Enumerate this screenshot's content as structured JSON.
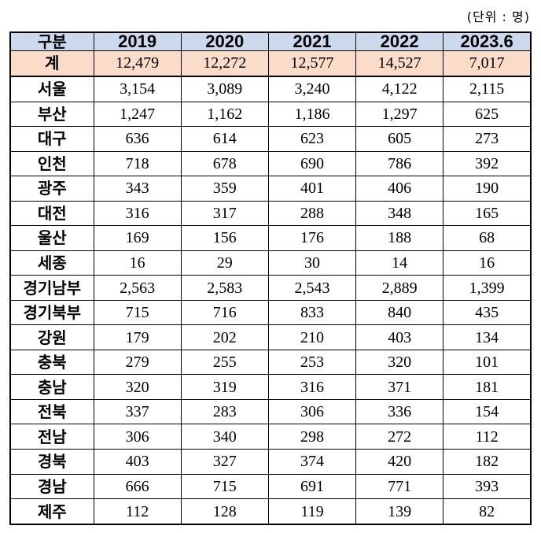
{
  "unit_label": "(단위 : 명)",
  "table": {
    "header": [
      "구분",
      "2019",
      "2020",
      "2021",
      "2022",
      "2023.6"
    ],
    "rows": [
      {
        "label": "계",
        "values": [
          "12,479",
          "12,272",
          "12,577",
          "14,527",
          "7,017"
        ]
      },
      {
        "label": "서울",
        "values": [
          "3,154",
          "3,089",
          "3,240",
          "4,122",
          "2,115"
        ]
      },
      {
        "label": "부산",
        "values": [
          "1,247",
          "1,162",
          "1,186",
          "1,297",
          "625"
        ]
      },
      {
        "label": "대구",
        "values": [
          "636",
          "614",
          "623",
          "605",
          "273"
        ]
      },
      {
        "label": "인천",
        "values": [
          "718",
          "678",
          "690",
          "786",
          "392"
        ]
      },
      {
        "label": "광주",
        "values": [
          "343",
          "359",
          "401",
          "406",
          "190"
        ]
      },
      {
        "label": "대전",
        "values": [
          "316",
          "317",
          "288",
          "348",
          "165"
        ]
      },
      {
        "label": "울산",
        "values": [
          "169",
          "156",
          "176",
          "188",
          "68"
        ]
      },
      {
        "label": "세종",
        "values": [
          "16",
          "29",
          "30",
          "14",
          "16"
        ]
      },
      {
        "label": "경기남부",
        "values": [
          "2,563",
          "2,583",
          "2,543",
          "2,889",
          "1,399"
        ]
      },
      {
        "label": "경기북부",
        "values": [
          "715",
          "716",
          "833",
          "840",
          "435"
        ]
      },
      {
        "label": "강원",
        "values": [
          "179",
          "202",
          "210",
          "403",
          "134"
        ]
      },
      {
        "label": "충북",
        "values": [
          "279",
          "255",
          "253",
          "320",
          "101"
        ]
      },
      {
        "label": "충남",
        "values": [
          "320",
          "319",
          "316",
          "371",
          "181"
        ]
      },
      {
        "label": "전북",
        "values": [
          "337",
          "283",
          "306",
          "336",
          "154"
        ]
      },
      {
        "label": "전남",
        "values": [
          "306",
          "340",
          "298",
          "272",
          "112"
        ]
      },
      {
        "label": "경북",
        "values": [
          "403",
          "327",
          "374",
          "420",
          "182"
        ]
      },
      {
        "label": "경남",
        "values": [
          "666",
          "715",
          "691",
          "771",
          "393"
        ]
      },
      {
        "label": "제주",
        "values": [
          "112",
          "128",
          "119",
          "139",
          "82"
        ]
      }
    ]
  },
  "colors": {
    "header_bg": "#ccd9ec",
    "total_row_bg": "#fbdcc8"
  }
}
